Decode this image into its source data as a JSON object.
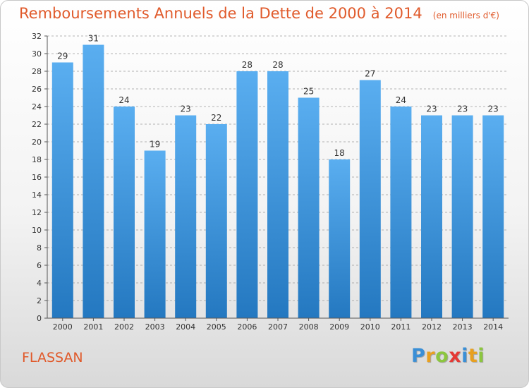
{
  "chart_data": {
    "type": "bar",
    "title": "Remboursements Annuels de la Dette de 2000 à 2014",
    "subtitle": "(en milliers d'€)",
    "categories": [
      "2000",
      "2001",
      "2002",
      "2003",
      "2004",
      "2005",
      "2006",
      "2007",
      "2008",
      "2009",
      "2010",
      "2011",
      "2012",
      "2013",
      "2014"
    ],
    "values": [
      29,
      31,
      24,
      19,
      23,
      22,
      28,
      28,
      25,
      18,
      27,
      24,
      23,
      23,
      23
    ],
    "ylim": [
      0,
      32
    ],
    "yticks": [
      0,
      2,
      4,
      6,
      8,
      10,
      12,
      14,
      16,
      18,
      20,
      22,
      24,
      26,
      28,
      30,
      32
    ],
    "xlabel": "",
    "ylabel": "",
    "grid": true,
    "bar_color_top": "#5aaef0",
    "bar_color_bottom": "#2478c0"
  },
  "footer": {
    "commune": "FLASSAN"
  },
  "logo": {
    "letters": [
      "P",
      "r",
      "o",
      "x",
      "i",
      "t",
      "i"
    ],
    "colors": [
      "#3a8fd6",
      "#e8a020",
      "#8cc63f",
      "#e53935",
      "#3a8fd6",
      "#e8a020",
      "#8cc63f"
    ]
  },
  "colors": {
    "title": "#e05a2b",
    "grid": "#9a9a9a",
    "axis": "#555555"
  }
}
